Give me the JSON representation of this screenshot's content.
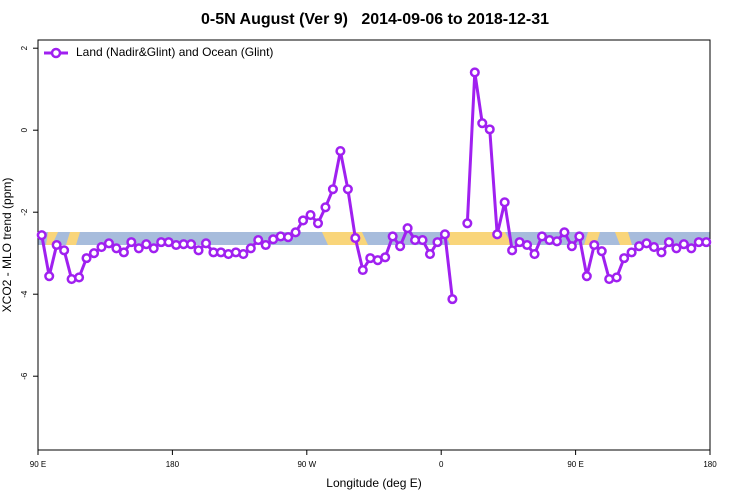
{
  "chart_data": {
    "type": "line",
    "title": "0-5N August (Ver 9)   2014-09-06 to 2018-12-31",
    "x_label": "Longitude (deg E)",
    "y_label": "XCO2 - MLO trend (ppm)",
    "legend": "top-left",
    "xlim": [
      90,
      540
    ],
    "xticks": [
      {
        "value": 90,
        "label": "90 E"
      },
      180,
      {
        "value": 270,
        "label": "90 W"
      },
      {
        "value": 360,
        "label": "0"
      },
      {
        "value": 450,
        "label": "90 E"
      },
      {
        "value": 540,
        "label": "180"
      }
    ],
    "ylim": [
      -7.8,
      2.2
    ],
    "yticks": [
      -6,
      -4,
      -2,
      0,
      2
    ],
    "x": [
      92.5,
      97.5,
      102.5,
      107.5,
      112.5,
      117.5,
      122.5,
      127.5,
      132.5,
      137.5,
      142.5,
      147.5,
      152.5,
      157.5,
      162.5,
      167.5,
      172.5,
      177.5,
      182.5,
      187.5,
      192.5,
      197.5,
      202.5,
      207.5,
      212.5,
      217.5,
      222.5,
      227.5,
      232.5,
      237.5,
      242.5,
      247.5,
      252.5,
      257.5,
      262.5,
      267.5,
      272.5,
      277.5,
      282.5,
      287.5,
      292.5,
      297.5,
      302.5,
      307.5,
      312.5,
      317.5,
      322.5,
      327.5,
      332.5,
      337.5,
      342.5,
      347.5,
      352.5,
      357.5,
      362.5,
      367.5,
      372.5,
      377.5,
      382.5,
      387.5,
      392.5,
      397.5,
      402.5,
      407.5,
      412.5,
      417.5,
      422.5,
      427.5,
      432.5,
      437.5,
      442.5,
      447.5,
      452.5,
      457.5,
      462.5,
      467.5,
      472.5,
      477.5,
      482.5,
      487.5,
      492.5,
      497.5,
      502.5,
      507.5,
      512.5,
      517.5,
      522.5,
      527.5,
      532.5,
      537.5
    ],
    "series": [
      {
        "name": "Land (Nadir&Glint) and Ocean (Glint)",
        "color": "#a020f0",
        "values": [
          -2.56,
          -3.56,
          -2.8,
          -2.93,
          -3.63,
          -3.59,
          -3.12,
          -3.0,
          -2.85,
          -2.76,
          -2.88,
          -2.98,
          -2.73,
          -2.88,
          -2.78,
          -2.88,
          -2.73,
          -2.73,
          -2.8,
          -2.78,
          -2.78,
          -2.93,
          -2.76,
          -2.98,
          -2.98,
          -3.02,
          -2.98,
          -3.02,
          -2.88,
          -2.68,
          -2.8,
          -2.66,
          -2.59,
          -2.61,
          -2.49,
          -2.2,
          -2.07,
          -2.27,
          -1.88,
          -1.44,
          -0.51,
          -1.44,
          -2.63,
          -3.41,
          -3.12,
          -3.17,
          -3.1,
          -2.59,
          -2.83,
          -2.39,
          -2.68,
          -2.68,
          -3.02,
          -2.73,
          -2.54,
          -4.12,
          null,
          -2.27,
          1.41,
          0.17,
          0.02,
          -2.54,
          -1.76,
          -2.93,
          -2.73,
          -2.8,
          -3.02,
          -2.59,
          -2.68,
          -2.71,
          -2.49,
          -2.83,
          -2.59,
          -3.56,
          -2.8,
          -2.95,
          -3.63,
          -3.59,
          -3.12,
          -2.98,
          -2.83,
          -2.76,
          -2.85,
          -2.98,
          -2.73,
          -2.88,
          -2.78,
          -2.88,
          -2.73,
          -2.73
        ]
      }
    ]
  }
}
